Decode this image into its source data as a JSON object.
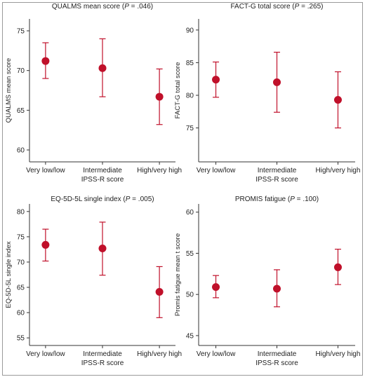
{
  "chart_data": [
    {
      "type": "scatter",
      "title": "QUALMS mean score",
      "pvalue": ".046",
      "xlabel": "IPSS-R score",
      "ylabel": "QUALMS mean score",
      "categories": [
        "Very low/low",
        "Intermediate",
        "High/very high"
      ],
      "means": [
        71.2,
        70.3,
        66.7
      ],
      "ci_low": [
        69.0,
        66.7,
        63.2
      ],
      "ci_high": [
        73.5,
        74.0,
        70.2
      ],
      "ylim": [
        58.5,
        76.5
      ],
      "yticks": [
        60,
        65,
        70,
        75
      ]
    },
    {
      "type": "scatter",
      "title": "FACT-G total score",
      "pvalue": ".265",
      "xlabel": "IPSS-R score",
      "ylabel": "FACT-G total score",
      "categories": [
        "Very low/low",
        "Intermediate",
        "High/very high"
      ],
      "means": [
        82.4,
        82.0,
        79.3
      ],
      "ci_low": [
        79.7,
        77.4,
        75.0
      ],
      "ci_high": [
        85.1,
        86.6,
        83.6
      ],
      "ylim": [
        69.8,
        91.7
      ],
      "yticks": [
        75,
        80,
        85,
        90
      ]
    },
    {
      "type": "scatter",
      "title": "EQ-5D-5L single index",
      "pvalue": ".005",
      "xlabel": "IPSS-R score",
      "ylabel": "EQ-5D-5L single index",
      "categories": [
        "Very low/low",
        "Intermediate",
        "High/very high"
      ],
      "means": [
        73.4,
        72.7,
        64.1
      ],
      "ci_low": [
        70.2,
        67.4,
        59.0
      ],
      "ci_high": [
        76.5,
        77.9,
        69.1
      ],
      "ylim": [
        53.5,
        81.5
      ],
      "yticks": [
        55,
        60,
        65,
        70,
        75,
        80
      ]
    },
    {
      "type": "scatter",
      "title": "PROMIS fatigue",
      "pvalue": ".100",
      "xlabel": "IPSS-R score",
      "ylabel": "Promis fatigue mean t score",
      "categories": [
        "Very low/low",
        "Intermediate",
        "High/very high"
      ],
      "means": [
        50.9,
        50.7,
        53.3
      ],
      "ci_low": [
        49.6,
        48.5,
        51.2
      ],
      "ci_high": [
        52.3,
        53.0,
        55.5
      ],
      "ylim": [
        43.8,
        61.0
      ],
      "yticks": [
        45,
        50,
        55,
        60
      ]
    }
  ],
  "colors": {
    "marker": "#c0102a",
    "axis": "#333333"
  }
}
